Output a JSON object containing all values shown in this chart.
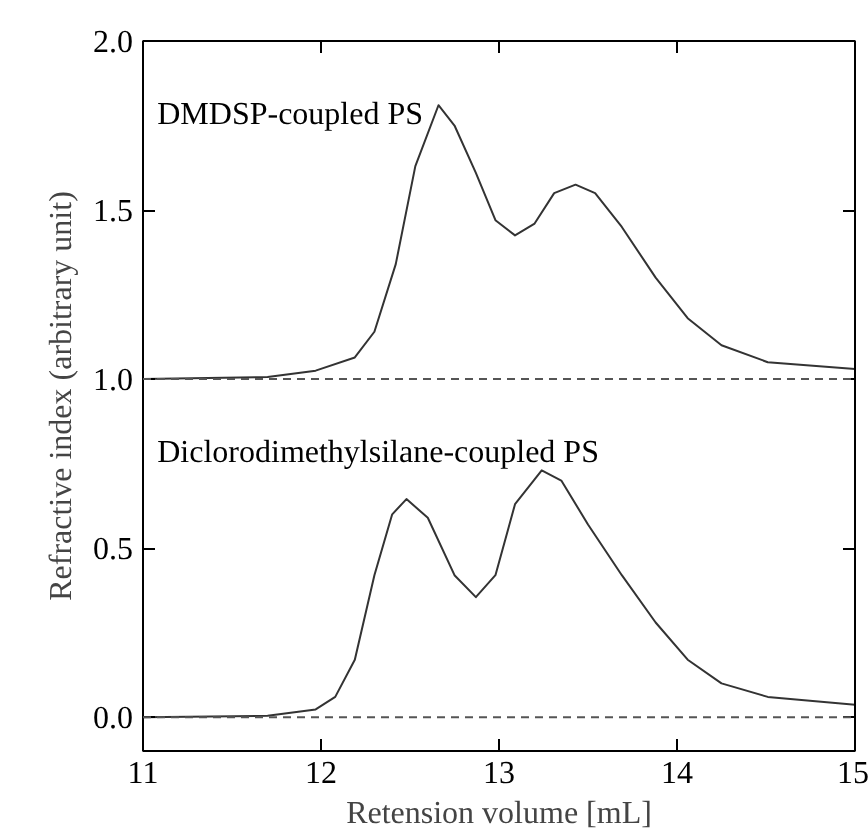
{
  "chart_data": {
    "type": "line",
    "xlabel": "Retension volume [mL]",
    "ylabel": "Refractive index (arbitrary unit)",
    "xlim": [
      11,
      15
    ],
    "ylim": [
      -0.1,
      2.0
    ],
    "xticks": [
      11,
      12,
      13,
      14,
      15
    ],
    "yticks": [
      {
        "value": 0,
        "label": "0.0"
      },
      {
        "value": 0.5,
        "label": "0.5"
      },
      {
        "value": 1,
        "label": "1.0"
      },
      {
        "value": 1.5,
        "label": "1.5"
      },
      {
        "value": 2,
        "label": "2.0"
      }
    ],
    "grid": false,
    "legend": false,
    "series": [
      {
        "name": "DMDSP-coupled PS",
        "color": "#333333",
        "x": [
          11,
          11.7,
          11.97,
          12.19,
          12.3,
          12.42,
          12.53,
          12.66,
          12.75,
          12.87,
          12.98,
          13.09,
          13.2,
          13.31,
          13.43,
          13.54,
          13.69,
          13.88,
          14.06,
          14.25,
          14.51,
          15
        ],
        "values": [
          1.0,
          1.006,
          1.025,
          1.064,
          1.14,
          1.34,
          1.63,
          1.81,
          1.75,
          1.61,
          1.47,
          1.425,
          1.46,
          1.55,
          1.575,
          1.55,
          1.45,
          1.3,
          1.18,
          1.1,
          1.05,
          1.03
        ]
      },
      {
        "name": "Diclorodimethylsilane-coupled PS",
        "color": "#333333",
        "x": [
          11,
          11.7,
          11.97,
          12.08,
          12.19,
          12.3,
          12.4,
          12.48,
          12.6,
          12.75,
          12.87,
          12.98,
          13.09,
          13.24,
          13.35,
          13.5,
          13.69,
          13.88,
          14.06,
          14.25,
          14.51,
          15
        ],
        "values": [
          0,
          0.004,
          0.023,
          0.06,
          0.17,
          0.42,
          0.6,
          0.645,
          0.59,
          0.42,
          0.355,
          0.42,
          0.63,
          0.73,
          0.7,
          0.57,
          0.42,
          0.28,
          0.17,
          0.1,
          0.06,
          0.037
        ]
      }
    ],
    "ref_lines": [
      {
        "axis": "y",
        "value": 1,
        "color": "#555555",
        "line_style": "dashed"
      },
      {
        "axis": "y",
        "value": 0,
        "color": "#555555",
        "line_style": "dashed"
      }
    ]
  }
}
